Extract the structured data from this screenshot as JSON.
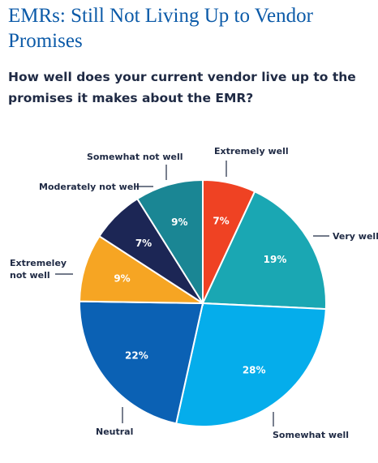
{
  "title": "EMRs: Still Not Living Up to Vendor Promises",
  "subtitle": "How well does your current vendor live up to the promises it makes about the EMR?",
  "chart_data": {
    "type": "pie",
    "unit": "%",
    "slices": [
      {
        "label": "Extremely well",
        "value": 7,
        "color": "#ef4223"
      },
      {
        "label": "Very well",
        "value": 19,
        "color": "#1aa7b3"
      },
      {
        "label": "Somewhat well",
        "value": 28,
        "color": "#05adeb"
      },
      {
        "label": "Neutral",
        "value": 22,
        "color": "#0b61b4"
      },
      {
        "label": "Extremeley not well",
        "label_lines": [
          "Extremeley",
          "not well"
        ],
        "value": 9,
        "color": "#f6a523"
      },
      {
        "label": "Moderately not well",
        "value": 7,
        "color": "#1c2655"
      },
      {
        "label": "Somewhat not well",
        "value": 9,
        "color": "#1a8694"
      }
    ]
  }
}
